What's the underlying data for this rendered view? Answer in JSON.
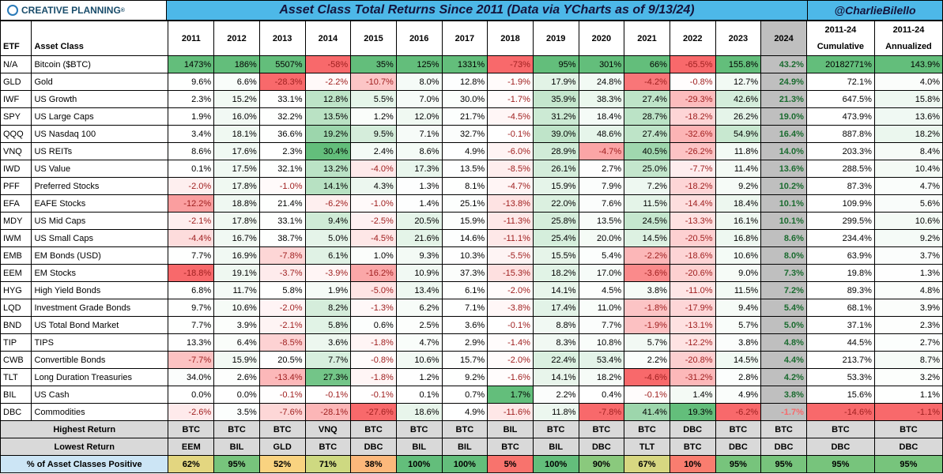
{
  "header": {
    "logo_text": "CREATIVE PLANNING",
    "title": "Asset Class Total Returns Since 2011 (Data via YCharts as of 9/13/24)",
    "handle": "@CharlieBilello"
  },
  "columns": {
    "etf": "ETF",
    "asset": "Asset Class",
    "years": [
      "2011",
      "2012",
      "2013",
      "2014",
      "2015",
      "2016",
      "2017",
      "2018",
      "2019",
      "2020",
      "2021",
      "2022",
      "2023",
      "2024"
    ],
    "cum_top": "2011-24",
    "cum_bot": "Cumulative",
    "ann_top": "2011-24",
    "ann_bot": "Annualized"
  },
  "rows": [
    {
      "etf": "N/A",
      "asset": "Bitcoin ($BTC)",
      "y": [
        "1473%",
        "186%",
        "5507%",
        "-58%",
        "35%",
        "125%",
        "1331%",
        "-73%",
        "95%",
        "301%",
        "66%",
        "-65.5%",
        "155.8%",
        "43.2%"
      ],
      "cum": "20182771%",
      "ann": "143.9%"
    },
    {
      "etf": "GLD",
      "asset": "Gold",
      "y": [
        "9.6%",
        "6.6%",
        "-28.3%",
        "-2.2%",
        "-10.7%",
        "8.0%",
        "12.8%",
        "-1.9%",
        "17.9%",
        "24.8%",
        "-4.2%",
        "-0.8%",
        "12.7%",
        "24.9%"
      ],
      "cum": "72.1%",
      "ann": "4.0%"
    },
    {
      "etf": "IWF",
      "asset": "US Growth",
      "y": [
        "2.3%",
        "15.2%",
        "33.1%",
        "12.8%",
        "5.5%",
        "7.0%",
        "30.0%",
        "-1.7%",
        "35.9%",
        "38.3%",
        "27.4%",
        "-29.3%",
        "42.6%",
        "21.3%"
      ],
      "cum": "647.5%",
      "ann": "15.8%"
    },
    {
      "etf": "SPY",
      "asset": "US Large Caps",
      "y": [
        "1.9%",
        "16.0%",
        "32.2%",
        "13.5%",
        "1.2%",
        "12.0%",
        "21.7%",
        "-4.5%",
        "31.2%",
        "18.4%",
        "28.7%",
        "-18.2%",
        "26.2%",
        "19.0%"
      ],
      "cum": "473.9%",
      "ann": "13.6%"
    },
    {
      "etf": "QQQ",
      "asset": "US Nasdaq 100",
      "y": [
        "3.4%",
        "18.1%",
        "36.6%",
        "19.2%",
        "9.5%",
        "7.1%",
        "32.7%",
        "-0.1%",
        "39.0%",
        "48.6%",
        "27.4%",
        "-32.6%",
        "54.9%",
        "16.4%"
      ],
      "cum": "887.8%",
      "ann": "18.2%"
    },
    {
      "etf": "VNQ",
      "asset": "US REITs",
      "y": [
        "8.6%",
        "17.6%",
        "2.3%",
        "30.4%",
        "2.4%",
        "8.6%",
        "4.9%",
        "-6.0%",
        "28.9%",
        "-4.7%",
        "40.5%",
        "-26.2%",
        "11.8%",
        "14.0%"
      ],
      "cum": "203.3%",
      "ann": "8.4%"
    },
    {
      "etf": "IWD",
      "asset": "US Value",
      "y": [
        "0.1%",
        "17.5%",
        "32.1%",
        "13.2%",
        "-4.0%",
        "17.3%",
        "13.5%",
        "-8.5%",
        "26.1%",
        "2.7%",
        "25.0%",
        "-7.7%",
        "11.4%",
        "13.6%"
      ],
      "cum": "288.5%",
      "ann": "10.4%"
    },
    {
      "etf": "PFF",
      "asset": "Preferred Stocks",
      "y": [
        "-2.0%",
        "17.8%",
        "-1.0%",
        "14.1%",
        "4.3%",
        "1.3%",
        "8.1%",
        "-4.7%",
        "15.9%",
        "7.9%",
        "7.2%",
        "-18.2%",
        "9.2%",
        "10.2%"
      ],
      "cum": "87.3%",
      "ann": "4.7%"
    },
    {
      "etf": "EFA",
      "asset": "EAFE Stocks",
      "y": [
        "-12.2%",
        "18.8%",
        "21.4%",
        "-6.2%",
        "-1.0%",
        "1.4%",
        "25.1%",
        "-13.8%",
        "22.0%",
        "7.6%",
        "11.5%",
        "-14.4%",
        "18.4%",
        "10.1%"
      ],
      "cum": "109.9%",
      "ann": "5.6%"
    },
    {
      "etf": "MDY",
      "asset": "US Mid Caps",
      "y": [
        "-2.1%",
        "17.8%",
        "33.1%",
        "9.4%",
        "-2.5%",
        "20.5%",
        "15.9%",
        "-11.3%",
        "25.8%",
        "13.5%",
        "24.5%",
        "-13.3%",
        "16.1%",
        "10.1%"
      ],
      "cum": "299.5%",
      "ann": "10.6%"
    },
    {
      "etf": "IWM",
      "asset": "US Small Caps",
      "y": [
        "-4.4%",
        "16.7%",
        "38.7%",
        "5.0%",
        "-4.5%",
        "21.6%",
        "14.6%",
        "-11.1%",
        "25.4%",
        "20.0%",
        "14.5%",
        "-20.5%",
        "16.8%",
        "8.6%"
      ],
      "cum": "234.4%",
      "ann": "9.2%"
    },
    {
      "etf": "EMB",
      "asset": "EM Bonds (USD)",
      "y": [
        "7.7%",
        "16.9%",
        "-7.8%",
        "6.1%",
        "1.0%",
        "9.3%",
        "10.3%",
        "-5.5%",
        "15.5%",
        "5.4%",
        "-2.2%",
        "-18.6%",
        "10.6%",
        "8.0%"
      ],
      "cum": "63.9%",
      "ann": "3.7%"
    },
    {
      "etf": "EEM",
      "asset": "EM Stocks",
      "y": [
        "-18.8%",
        "19.1%",
        "-3.7%",
        "-3.9%",
        "-16.2%",
        "10.9%",
        "37.3%",
        "-15.3%",
        "18.2%",
        "17.0%",
        "-3.6%",
        "-20.6%",
        "9.0%",
        "7.3%"
      ],
      "cum": "19.8%",
      "ann": "1.3%"
    },
    {
      "etf": "HYG",
      "asset": "High Yield Bonds",
      "y": [
        "6.8%",
        "11.7%",
        "5.8%",
        "1.9%",
        "-5.0%",
        "13.4%",
        "6.1%",
        "-2.0%",
        "14.1%",
        "4.5%",
        "3.8%",
        "-11.0%",
        "11.5%",
        "7.2%"
      ],
      "cum": "89.3%",
      "ann": "4.8%"
    },
    {
      "etf": "LQD",
      "asset": "Investment Grade Bonds",
      "y": [
        "9.7%",
        "10.6%",
        "-2.0%",
        "8.2%",
        "-1.3%",
        "6.2%",
        "7.1%",
        "-3.8%",
        "17.4%",
        "11.0%",
        "-1.8%",
        "-17.9%",
        "9.4%",
        "5.4%"
      ],
      "cum": "68.1%",
      "ann": "3.9%"
    },
    {
      "etf": "BND",
      "asset": "US Total Bond Market",
      "y": [
        "7.7%",
        "3.9%",
        "-2.1%",
        "5.8%",
        "0.6%",
        "2.5%",
        "3.6%",
        "-0.1%",
        "8.8%",
        "7.7%",
        "-1.9%",
        "-13.1%",
        "5.7%",
        "5.0%"
      ],
      "cum": "37.1%",
      "ann": "2.3%"
    },
    {
      "etf": "TIP",
      "asset": "TIPS",
      "y": [
        "13.3%",
        "6.4%",
        "-8.5%",
        "3.6%",
        "-1.8%",
        "4.7%",
        "2.9%",
        "-1.4%",
        "8.3%",
        "10.8%",
        "5.7%",
        "-12.2%",
        "3.8%",
        "4.8%"
      ],
      "cum": "44.5%",
      "ann": "2.7%"
    },
    {
      "etf": "CWB",
      "asset": "Convertible Bonds",
      "y": [
        "-7.7%",
        "15.9%",
        "20.5%",
        "7.7%",
        "-0.8%",
        "10.6%",
        "15.7%",
        "-2.0%",
        "22.4%",
        "53.4%",
        "2.2%",
        "-20.8%",
        "14.5%",
        "4.4%"
      ],
      "cum": "213.7%",
      "ann": "8.7%"
    },
    {
      "etf": "TLT",
      "asset": "Long Duration Treasuries",
      "y": [
        "34.0%",
        "2.6%",
        "-13.4%",
        "27.3%",
        "-1.8%",
        "1.2%",
        "9.2%",
        "-1.6%",
        "14.1%",
        "18.2%",
        "-4.6%",
        "-31.2%",
        "2.8%",
        "4.2%"
      ],
      "cum": "53.3%",
      "ann": "3.2%"
    },
    {
      "etf": "BIL",
      "asset": "US Cash",
      "y": [
        "0.0%",
        "0.0%",
        "-0.1%",
        "-0.1%",
        "-0.1%",
        "0.1%",
        "0.7%",
        "1.7%",
        "2.2%",
        "0.4%",
        "-0.1%",
        "1.4%",
        "4.9%",
        "3.8%"
      ],
      "cum": "15.6%",
      "ann": "1.1%"
    },
    {
      "etf": "DBC",
      "asset": "Commodities",
      "y": [
        "-2.6%",
        "3.5%",
        "-7.6%",
        "-28.1%",
        "-27.6%",
        "18.6%",
        "4.9%",
        "-11.6%",
        "11.8%",
        "-7.8%",
        "41.4%",
        "19.3%",
        "-6.2%",
        "-1.7%"
      ],
      "cum": "-14.6%",
      "ann": "-1.1%"
    }
  ],
  "highest": {
    "label": "Highest Return",
    "y": [
      "BTC",
      "BTC",
      "BTC",
      "VNQ",
      "BTC",
      "BTC",
      "BTC",
      "BIL",
      "BTC",
      "BTC",
      "BTC",
      "DBC",
      "BTC",
      "BTC"
    ],
    "cum": "BTC",
    "ann": "BTC"
  },
  "lowest": {
    "label": "Lowest Return",
    "y": [
      "EEM",
      "BIL",
      "GLD",
      "BTC",
      "DBC",
      "BIL",
      "BIL",
      "BTC",
      "BIL",
      "DBC",
      "TLT",
      "BTC",
      "DBC",
      "DBC"
    ],
    "cum": "DBC",
    "ann": "DBC"
  },
  "pct_positive": {
    "label": "% of Asset Classes Positive",
    "y": [
      "62%",
      "95%",
      "52%",
      "71%",
      "38%",
      "100%",
      "100%",
      "5%",
      "100%",
      "90%",
      "67%",
      "10%",
      "95%",
      "95%"
    ],
    "cum": "95%",
    "ann": "95%"
  },
  "colors": {
    "max_green": "#63be7b",
    "min_red": "#f8696b",
    "mid": "#ffffff",
    "header_bg": "#4db8e8",
    "grey_2024": "#bfbfbf",
    "summary_grey": "#d9d9d9",
    "pct_label_bg": "#cce5f5",
    "border": "#000000"
  }
}
